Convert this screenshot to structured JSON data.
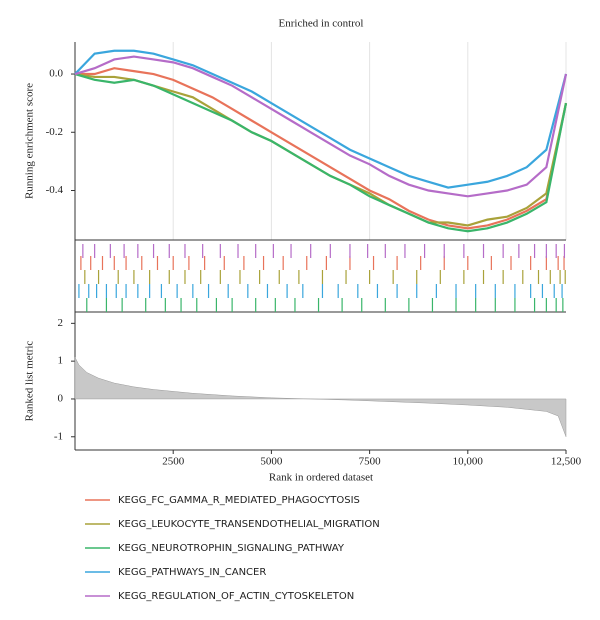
{
  "chart_data": [
    {
      "type": "line",
      "title": "Enriched in control",
      "ylabel": "Running enrichment score",
      "x": [
        0,
        500,
        1000,
        1500,
        2000,
        2500,
        3000,
        3500,
        4000,
        4500,
        5000,
        5500,
        6000,
        6500,
        7000,
        7500,
        8000,
        8500,
        9000,
        9500,
        10000,
        10500,
        11000,
        11500,
        12000,
        12500
      ],
      "xlim": [
        0,
        12500
      ],
      "ylim": [
        -0.57,
        0.11
      ],
      "yticks": [
        {
          "value": 0,
          "label": "0.0"
        },
        -0.2,
        -0.4
      ],
      "grid": true,
      "series": [
        {
          "name": "KEGG_FC_GAMMA_R_MEDIATED_PHAGOCYTOSIS",
          "color": "#e8735a",
          "values": [
            0,
            0,
            0.02,
            0.01,
            0,
            -0.02,
            -0.05,
            -0.08,
            -0.12,
            -0.16,
            -0.2,
            -0.24,
            -0.28,
            -0.32,
            -0.36,
            -0.4,
            -0.43,
            -0.47,
            -0.5,
            -0.52,
            -0.53,
            -0.52,
            -0.5,
            -0.47,
            -0.43,
            -0.1
          ],
          "hits": [
            150,
            400,
            700,
            1000,
            1300,
            1700,
            2100,
            2500,
            2900,
            3300,
            3800,
            4300,
            4800,
            5300,
            5900,
            6400,
            7000,
            7600,
            8200,
            8800,
            9400,
            10000,
            10600,
            11100,
            11600,
            12000,
            12300,
            12450
          ]
        },
        {
          "name": "KEGG_LEUKOCYTE_TRANSENDOTHELIAL_MIGRATION",
          "color": "#a9a23a",
          "values": [
            0,
            -0.01,
            -0.01,
            -0.02,
            -0.04,
            -0.06,
            -0.08,
            -0.12,
            -0.16,
            -0.2,
            -0.23,
            -0.27,
            -0.31,
            -0.35,
            -0.38,
            -0.41,
            -0.45,
            -0.48,
            -0.51,
            -0.51,
            -0.52,
            -0.5,
            -0.49,
            -0.46,
            -0.41,
            -0.1
          ],
          "hits": [
            250,
            600,
            1100,
            1500,
            1900,
            2400,
            2800,
            3200,
            3700,
            4200,
            4700,
            5200,
            5700,
            6300,
            6900,
            7500,
            8100,
            8700,
            9300,
            9900,
            10400,
            10900,
            11400,
            11800,
            12100,
            12350,
            12480
          ]
        },
        {
          "name": "KEGG_NEUROTROPHIN_SIGNALING_PATHWAY",
          "color": "#3ab56a",
          "values": [
            0,
            -0.02,
            -0.03,
            -0.02,
            -0.04,
            -0.07,
            -0.1,
            -0.13,
            -0.16,
            -0.2,
            -0.23,
            -0.27,
            -0.31,
            -0.35,
            -0.38,
            -0.42,
            -0.45,
            -0.48,
            -0.51,
            -0.53,
            -0.54,
            -0.53,
            -0.51,
            -0.48,
            -0.44,
            -0.1
          ],
          "hits": [
            300,
            800,
            1200,
            1800,
            2300,
            2700,
            3100,
            3600,
            4000,
            4600,
            5100,
            5600,
            6200,
            6800,
            7300,
            7900,
            8500,
            9100,
            9700,
            10200,
            10700,
            11200,
            11700,
            12000,
            12250,
            12420
          ]
        },
        {
          "name": "KEGG_PATHWAYS_IN_CANCER",
          "color": "#3aa6dd",
          "values": [
            0,
            0.07,
            0.08,
            0.08,
            0.07,
            0.05,
            0.03,
            0,
            -0.03,
            -0.06,
            -0.1,
            -0.14,
            -0.18,
            -0.22,
            -0.26,
            -0.29,
            -0.32,
            -0.35,
            -0.37,
            -0.39,
            -0.38,
            -0.37,
            -0.35,
            -0.32,
            -0.26,
            0
          ],
          "hits": [
            100,
            350,
            550,
            800,
            1050,
            1300,
            1600,
            1900,
            2200,
            2600,
            3000,
            3400,
            3900,
            4400,
            4900,
            5400,
            5800,
            6300,
            6700,
            7200,
            7700,
            8200,
            8700,
            9200,
            9700,
            10200,
            10700,
            11200,
            11600,
            11900,
            12200,
            12400
          ]
        },
        {
          "name": "KEGG_REGULATION_OF_ACTIN_CYTOSKELETON",
          "color": "#b56cc8",
          "values": [
            0,
            0.02,
            0.05,
            0.06,
            0.05,
            0.04,
            0.02,
            -0.01,
            -0.04,
            -0.08,
            -0.12,
            -0.16,
            -0.2,
            -0.24,
            -0.28,
            -0.31,
            -0.35,
            -0.38,
            -0.4,
            -0.41,
            -0.42,
            -0.41,
            -0.4,
            -0.38,
            -0.32,
            0
          ],
          "hits": [
            200,
            500,
            900,
            1250,
            1600,
            2000,
            2400,
            2800,
            3250,
            3700,
            4150,
            4600,
            5050,
            5500,
            6000,
            6500,
            7000,
            7450,
            7900,
            8400,
            8900,
            9400,
            9900,
            10400,
            10900,
            11300,
            11700,
            12000,
            12250,
            12460
          ]
        }
      ]
    },
    {
      "type": "area",
      "ylabel": "Ranked list metric",
      "xlabel": "Rank in ordered dataset",
      "color": "#c8c8c8",
      "x": [
        0,
        100,
        300,
        600,
        1000,
        1500,
        2000,
        3000,
        4000,
        5000,
        6000,
        7000,
        8000,
        9000,
        10000,
        11000,
        12000,
        12300,
        12500
      ],
      "values": [
        1.1,
        0.9,
        0.7,
        0.55,
        0.42,
        0.32,
        0.25,
        0.15,
        0.08,
        0.03,
        0,
        -0.03,
        -0.07,
        -0.11,
        -0.16,
        -0.22,
        -0.33,
        -0.45,
        -1.0
      ],
      "xlim": [
        0,
        12500
      ],
      "ylim": [
        -1.35,
        2.3
      ],
      "xticks": [
        2500,
        5000,
        7500,
        {
          "value": 10000,
          "label": "10,000"
        },
        {
          "value": 12500,
          "label": "12,500"
        }
      ],
      "yticks": [
        2,
        1,
        0,
        -1
      ]
    }
  ]
}
